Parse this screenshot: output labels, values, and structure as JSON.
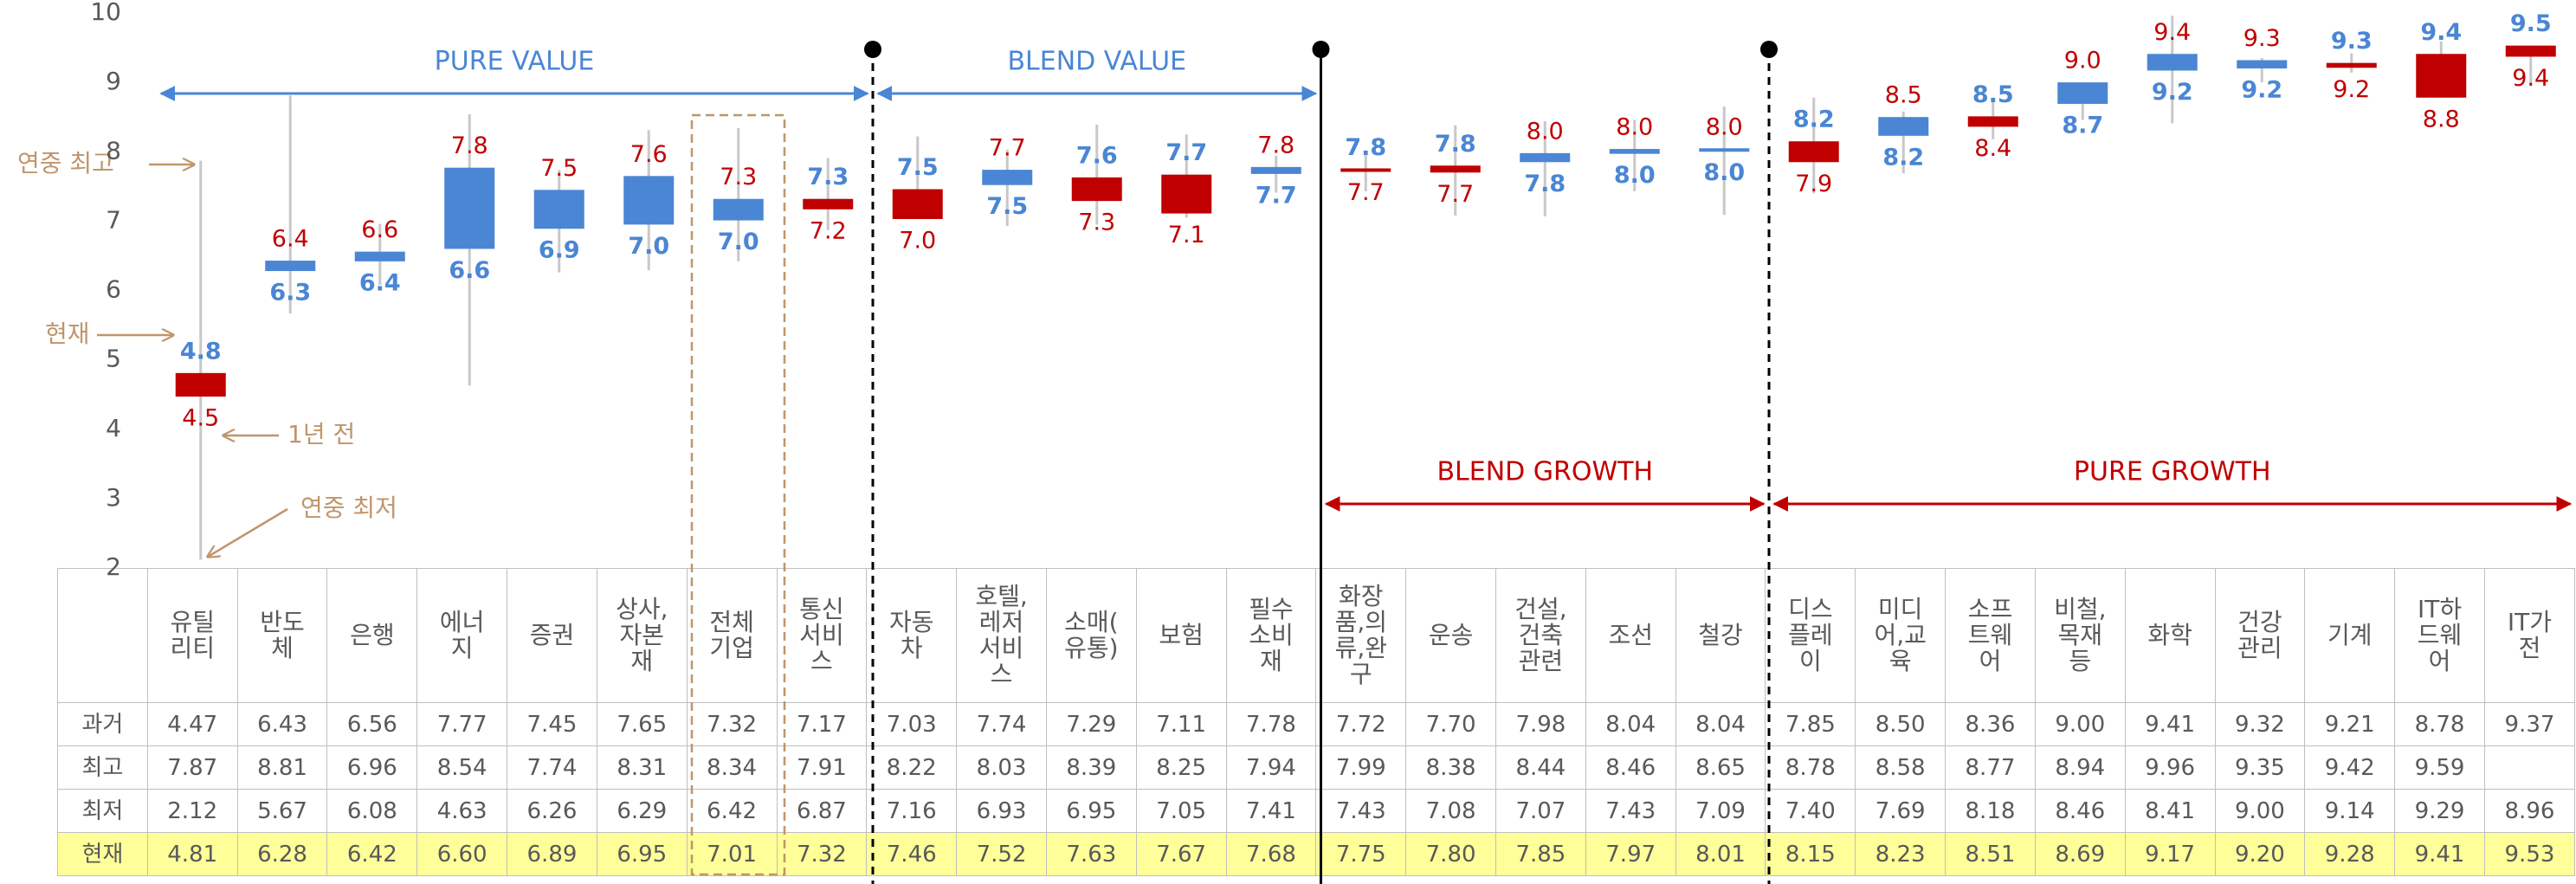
{
  "chart_data": {
    "type": "candlestick",
    "categories": [
      "유틸\n리티",
      "반도\n체",
      "은행",
      "에너\n지",
      "증권",
      "상사,\n자본\n재",
      "전체\n기업",
      "통신\n서비\n스",
      "자동\n차",
      "호텔,\n레저\n서비\n스",
      "소매(\n유통)",
      "보험",
      "필수\n소비\n재",
      "화장\n품,의\n류,완\n구",
      "운송",
      "건설,\n건축\n관련",
      "조선",
      "철강",
      "디스\n플레\n이",
      "미디\n어,교\n육",
      "소프\n트웨\n어",
      "비철,\n목재\n등",
      "화학",
      "건강\n관리",
      "기계",
      "IT하\n드웨\n어",
      "IT가\n전"
    ],
    "series": [
      {
        "name": "과거",
        "color": "#c00000",
        "values": [
          4.47,
          6.43,
          6.56,
          7.77,
          7.45,
          7.65,
          7.32,
          7.17,
          7.03,
          7.74,
          7.29,
          7.11,
          7.78,
          7.72,
          7.7,
          7.98,
          8.04,
          8.04,
          7.85,
          8.5,
          8.36,
          9.0,
          9.41,
          9.32,
          9.21,
          8.78,
          9.37
        ],
        "value_labels": [
          "4.47",
          "6.43",
          "6.56",
          "7.77",
          "7.45",
          "7.65",
          "7.32",
          "7.17",
          "7.03",
          "7.74",
          "7.29",
          "7.11",
          "7.78",
          "7.72",
          "7.70",
          "7.98",
          "8.04",
          "8.04",
          "7.85",
          "8.50",
          "8.36",
          "9.00",
          "9.41",
          "9.32",
          "9.21",
          "8.78",
          "9.37"
        ],
        "point_labels": [
          "4.5",
          "6.4",
          "6.6",
          "7.8",
          "7.5",
          "7.6",
          "7.3",
          "7.2",
          "7.0",
          "7.7",
          "7.3",
          "7.1",
          "7.8",
          "7.7",
          "7.7",
          "8.0",
          "8.0",
          "8.0",
          "7.9",
          "8.5",
          "8.4",
          "9.0",
          "9.4",
          "9.3",
          "9.2",
          "8.8",
          "9.4"
        ]
      },
      {
        "name": "최고",
        "values": [
          7.87,
          8.81,
          6.96,
          8.54,
          7.74,
          8.31,
          8.34,
          7.91,
          8.22,
          8.03,
          8.39,
          8.25,
          7.94,
          7.99,
          8.38,
          8.44,
          8.46,
          8.65,
          8.78,
          8.58,
          8.77,
          8.94,
          9.96,
          9.35,
          9.42,
          9.59,
          null
        ],
        "value_labels": [
          "7.87",
          "8.81",
          "6.96",
          "8.54",
          "7.74",
          "8.31",
          "8.34",
          "7.91",
          "8.22",
          "8.03",
          "8.39",
          "8.25",
          "7.94",
          "7.99",
          "8.38",
          "8.44",
          "8.46",
          "8.65",
          "8.78",
          "8.58",
          "8.77",
          "8.94",
          "9.96",
          "9.35",
          "9.42",
          "9.59",
          null
        ]
      },
      {
        "name": "최저",
        "values": [
          2.12,
          5.67,
          6.08,
          4.63,
          6.26,
          6.29,
          6.42,
          6.87,
          7.16,
          6.93,
          6.95,
          7.05,
          7.41,
          7.43,
          7.08,
          7.07,
          7.43,
          7.09,
          7.4,
          7.69,
          8.18,
          8.46,
          8.41,
          9.0,
          9.14,
          9.29,
          8.96
        ],
        "value_labels": [
          "2.12",
          "5.67",
          "6.08",
          "4.63",
          "6.26",
          "6.29",
          "6.42",
          "6.87",
          "7.16",
          "6.93",
          "6.95",
          "7.05",
          "7.41",
          "7.43",
          "7.08",
          "7.07",
          "7.43",
          "7.09",
          "7.40",
          "7.69",
          "8.18",
          "8.46",
          "8.41",
          "9.00",
          "9.14",
          "9.29",
          "8.96"
        ]
      },
      {
        "name": "현재",
        "color": "#4a86d4",
        "values": [
          4.81,
          6.28,
          6.42,
          6.6,
          6.89,
          6.95,
          7.01,
          7.32,
          7.46,
          7.52,
          7.63,
          7.67,
          7.68,
          7.75,
          7.8,
          7.85,
          7.97,
          8.01,
          8.15,
          8.23,
          8.51,
          8.69,
          9.17,
          9.2,
          9.28,
          9.41,
          9.53
        ],
        "value_labels": [
          "4.81",
          "6.28",
          "6.42",
          "6.60",
          "6.89",
          "6.95",
          "7.01",
          "7.32",
          "7.46",
          "7.52",
          "7.63",
          "7.67",
          "7.68",
          "7.75",
          "7.80",
          "7.85",
          "7.97",
          "8.01",
          "8.15",
          "8.23",
          "8.51",
          "8.69",
          "9.17",
          "9.20",
          "9.28",
          "9.41",
          "9.53"
        ],
        "point_labels": [
          "4.8",
          "6.3",
          "6.4",
          "6.6",
          "6.9",
          "7.0",
          "7.0",
          "7.3",
          "7.5",
          "7.5",
          "7.6",
          "7.7",
          "7.7",
          "7.8",
          "7.8",
          "7.8",
          "8.0",
          "8.0",
          "8.2",
          "8.2",
          "8.5",
          "8.7",
          "9.2",
          "9.2",
          "9.3",
          "9.4",
          "9.5"
        ]
      }
    ],
    "rise_color": "#c00000",
    "fall_color": "#4a86d4",
    "whisker_color": "#c8c8c8",
    "ylim": [
      2,
      10
    ],
    "yticks": [
      2,
      3,
      4,
      5,
      6,
      7,
      8,
      9,
      10
    ],
    "grid": false,
    "groups": [
      "PURE VALUE",
      "BLEND VALUE",
      "BLEND GROWTH",
      "PURE GROWTH"
    ],
    "annotations": [
      "연중 최고",
      "현재",
      "1년 전",
      "연중 최저"
    ]
  }
}
